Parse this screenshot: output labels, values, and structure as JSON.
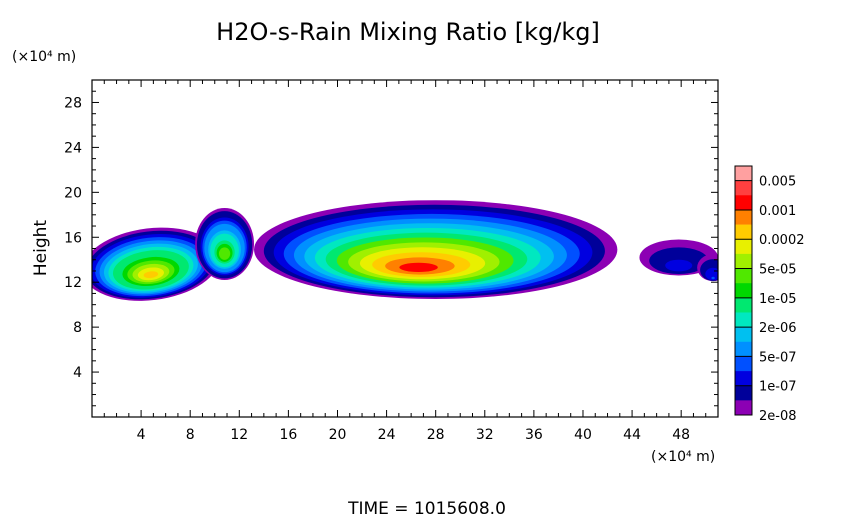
{
  "chart_data": {
    "type": "heatmap",
    "title": "H2O-s-Rain Mixing Ratio [kg/kg]",
    "xlabel": "",
    "x_unit": "(×10⁴ m)",
    "ylabel": "Height",
    "y_unit": "(×10⁴ m)",
    "xlim": [
      0,
      51
    ],
    "ylim": [
      0,
      30
    ],
    "x_ticks": [
      4,
      8,
      12,
      16,
      20,
      24,
      28,
      32,
      36,
      40,
      44,
      48
    ],
    "y_ticks": [
      4,
      8,
      12,
      16,
      20,
      24,
      28
    ],
    "colorbar": {
      "scale": "log",
      "range": [
        1e-08,
        0.01
      ],
      "labels": [
        "0.005",
        "0.001",
        "0.0002",
        "5e-05",
        "1e-05",
        "2e-06",
        "5e-07",
        "1e-07",
        "2e-08"
      ],
      "colors": [
        "#ffa0a0",
        "#ff4040",
        "#ff0000",
        "#ff8000",
        "#ffcc00",
        "#e8f000",
        "#a0f000",
        "#50e800",
        "#00d800",
        "#00e870",
        "#00e8c0",
        "#00c0f0",
        "#0090ff",
        "#0050ff",
        "#0000e0",
        "#00009a",
        "#8c00b4"
      ]
    },
    "regions": [
      {
        "x_range": [
          0,
          10
        ],
        "y_range": [
          11,
          17
        ],
        "peak": "0.0002",
        "peak_location": [
          5,
          12.5
        ]
      },
      {
        "x_range": [
          8.5,
          13
        ],
        "y_range": [
          12.5,
          19
        ],
        "peak": "5e-05",
        "peak_location": [
          11,
          15
        ]
      },
      {
        "x_range": [
          14,
          45
        ],
        "y_range": [
          10.5,
          19.5
        ],
        "peak": "0.001",
        "peak_location": [
          27,
          13
        ]
      },
      {
        "x_range": [
          45,
          51
        ],
        "y_range": [
          12,
          16
        ],
        "peak": "1e-07",
        "peak_location": [
          48,
          14.5
        ]
      }
    ],
    "time_label": "TIME = 1015608.0"
  }
}
